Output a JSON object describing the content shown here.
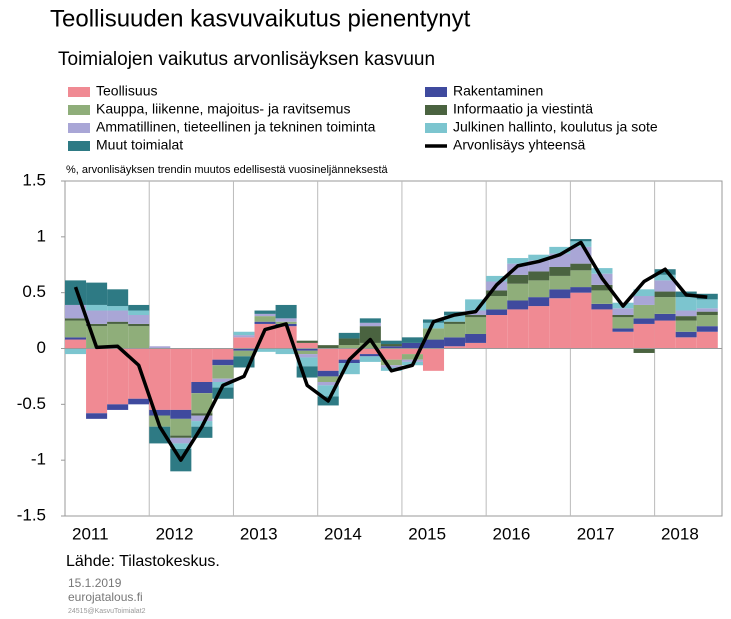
{
  "chart_data": {
    "type": "stacked_bar_line",
    "title": "Teollisuuden kasvuvaikutus pienentynyt",
    "subtitle": "Toimialojen vaikutus arvonlisäyksen kasvuun",
    "y_axis_label": "%, arvonlisäyksen trendin muutos edellisestä vuosineljänneksestä",
    "source": "Lähde: Tilastokeskus.",
    "date": "15.1.2019",
    "site": "eurojatalous.fi",
    "code": "24515@KasvuToimialat2",
    "x": [
      2011,
      2011.25,
      2011.5,
      2011.75,
      2012,
      2012.25,
      2012.5,
      2012.75,
      2013,
      2013.25,
      2013.5,
      2013.75,
      2014,
      2014.25,
      2014.5,
      2014.75,
      2015,
      2015.25,
      2015.5,
      2015.75,
      2016,
      2016.25,
      2016.5,
      2016.75,
      2017,
      2017.25,
      2017.5,
      2017.75,
      2018,
      2018.25,
      2018.5
    ],
    "xlim": [
      2011,
      2018.8
    ],
    "xticks": [
      2011,
      2012,
      2013,
      2014,
      2015,
      2016,
      2017,
      2018
    ],
    "ylim": [
      -1.5,
      1.5
    ],
    "yticks": [
      1.5,
      1,
      0.5,
      0,
      -0.5,
      -1,
      -1.5
    ],
    "series": [
      {
        "name": "Teollisuus",
        "color": "#f08a93",
        "values": [
          0.08,
          -0.58,
          -0.5,
          -0.45,
          -0.55,
          -0.55,
          -0.3,
          -0.1,
          0.1,
          0.22,
          0.2,
          0.05,
          -0.2,
          -0.1,
          -0.05,
          -0.1,
          -0.05,
          -0.2,
          0.02,
          0.05,
          0.3,
          0.35,
          0.38,
          0.45,
          0.5,
          0.35,
          0.15,
          0.22,
          0.25,
          0.1,
          0.15
        ]
      },
      {
        "name": "Rakentaminen",
        "color": "#3f4a9e",
        "values": [
          0.02,
          -0.05,
          -0.05,
          -0.05,
          -0.05,
          -0.08,
          -0.1,
          -0.05,
          -0.02,
          0.02,
          0.02,
          -0.02,
          -0.05,
          -0.03,
          -0.02,
          0.02,
          0.05,
          0.08,
          0.08,
          0.08,
          0.05,
          0.08,
          0.08,
          0.08,
          0.05,
          0.05,
          0.03,
          0.05,
          0.06,
          0.05,
          0.05
        ]
      },
      {
        "name": "Kauppa, liikenne, majoitus- ja ravitsemus",
        "color": "#8fae7a",
        "values": [
          0.15,
          0.2,
          0.22,
          0.2,
          -0.1,
          -0.15,
          -0.18,
          -0.12,
          -0.05,
          0.05,
          0.02,
          -0.03,
          -0.05,
          0.03,
          0.05,
          -0.05,
          -0.05,
          0.1,
          0.12,
          0.15,
          0.12,
          0.15,
          0.15,
          0.12,
          0.15,
          0.12,
          0.1,
          0.12,
          0.15,
          0.1,
          0.1
        ]
      },
      {
        "name": "Informaatio ja viestintä",
        "color": "#4a6340",
        "values": [
          0.02,
          0.02,
          0.02,
          0.02,
          0,
          -0.02,
          -0.02,
          0,
          0,
          0,
          0,
          0.02,
          0.03,
          0.06,
          0.15,
          0.02,
          0,
          0,
          0.02,
          0.02,
          0.05,
          0.08,
          0.08,
          0.08,
          0.06,
          0.05,
          0.02,
          -0.04,
          0.05,
          0.04,
          0.03
        ]
      },
      {
        "name": "Ammatillinen, tieteellinen ja tekninen toiminta",
        "color": "#a9a6d6",
        "values": [
          0.12,
          0.12,
          0.1,
          0.08,
          0.02,
          -0.05,
          -0.05,
          -0.03,
          0.02,
          0.02,
          0.03,
          -0.03,
          -0.03,
          0,
          0.03,
          -0.02,
          -0.02,
          0,
          0,
          0.04,
          0.08,
          0.1,
          0.1,
          0.12,
          0.15,
          0.1,
          0.06,
          0.08,
          0.1,
          0.05,
          0.03
        ]
      },
      {
        "name": "Julkinen hallinto, koulutus ja sote",
        "color": "#7cc5cf",
        "values": [
          -0.05,
          0.05,
          0.04,
          0.04,
          0,
          -0.05,
          -0.05,
          -0.05,
          0.03,
          -0.03,
          -0.05,
          -0.08,
          -0.1,
          -0.1,
          -0.05,
          -0.03,
          -0.03,
          0.05,
          0.06,
          0.1,
          0.05,
          0.05,
          0.05,
          0.06,
          0.05,
          0.05,
          0.05,
          0.06,
          0.05,
          0.12,
          0.08
        ]
      },
      {
        "name": "Muut toimialat",
        "color": "#2e7a84",
        "values": [
          0.22,
          0.2,
          0.15,
          0.05,
          -0.15,
          -0.2,
          -0.1,
          -0.1,
          -0.1,
          0.03,
          0.12,
          -0.1,
          -0.08,
          0.05,
          0.04,
          0.03,
          0.05,
          0.03,
          0.03,
          0,
          0,
          0,
          0,
          0,
          0.02,
          0,
          0,
          0,
          0.05,
          0.05,
          0.05
        ]
      }
    ],
    "line": {
      "name": "Arvonlisäys yhteensä",
      "color": "#000000",
      "values": [
        0.55,
        0.01,
        0.02,
        -0.15,
        -0.7,
        -1.0,
        -0.7,
        -0.33,
        -0.25,
        0.17,
        0.22,
        -0.33,
        -0.47,
        -0.1,
        0.08,
        -0.2,
        -0.15,
        0.24,
        0.3,
        0.33,
        0.57,
        0.74,
        0.78,
        0.84,
        0.95,
        0.63,
        0.38,
        0.6,
        0.71,
        0.48,
        0.46
      ]
    }
  }
}
